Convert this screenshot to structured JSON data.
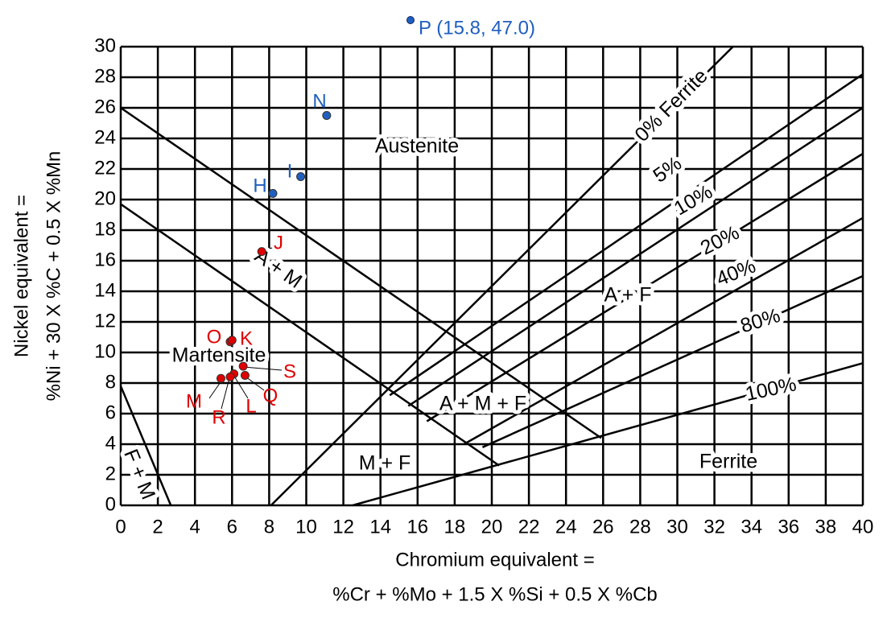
{
  "chart_data": {
    "type": "scatter",
    "xlabel": [
      "Chromium equivalent =",
      "%Cr + %Mo + 1.5 X %Si + 0.5 X %Cb"
    ],
    "ylabel": [
      "Nickel equivalent =",
      "%Ni + 30 X %C + 0.5 X %Mn"
    ],
    "xlim": [
      0,
      40
    ],
    "ylim": [
      0,
      30
    ],
    "xticks": [
      0,
      2,
      4,
      6,
      8,
      10,
      12,
      14,
      16,
      18,
      20,
      22,
      24,
      26,
      28,
      30,
      32,
      34,
      36,
      38,
      40
    ],
    "yticks": [
      0,
      2,
      4,
      6,
      8,
      10,
      12,
      14,
      16,
      18,
      20,
      22,
      24,
      26,
      28,
      30
    ],
    "grid": true,
    "series": [
      {
        "color": "#1f5fbf",
        "labels": [
          "N",
          "I",
          "H"
        ],
        "x": [
          11.1,
          9.7,
          8.2
        ],
        "y": [
          25.5,
          21.5,
          20.4
        ]
      },
      {
        "color": "#e00000",
        "labels": [
          "J",
          "O",
          "K",
          "S",
          "Q",
          "L",
          "R",
          "M"
        ],
        "x": [
          7.6,
          5.9,
          6.0,
          6.6,
          6.7,
          6.1,
          5.9,
          5.4
        ],
        "y": [
          16.6,
          10.7,
          10.8,
          9.1,
          8.5,
          8.6,
          8.4,
          8.3
        ]
      }
    ],
    "boundaries": [
      {
        "x": [
          0,
          25.9
        ],
        "y": [
          26,
          4.4
        ]
      },
      {
        "x": [
          0,
          20.4
        ],
        "y": [
          19.7,
          2.6
        ]
      },
      {
        "x": [
          0,
          2.7
        ],
        "y": [
          7.8,
          0
        ]
      },
      {
        "x": [
          8.1,
          33
        ],
        "y": [
          0,
          30
        ]
      },
      {
        "x": [
          14.5,
          40
        ],
        "y": [
          7.2,
          28.2
        ]
      },
      {
        "x": [
          15.5,
          40
        ],
        "y": [
          6.5,
          26
        ]
      },
      {
        "x": [
          16.5,
          40
        ],
        "y": [
          5.5,
          23
        ]
      },
      {
        "x": [
          18.5,
          40
        ],
        "y": [
          4,
          18.8
        ]
      },
      {
        "x": [
          19.5,
          40
        ],
        "y": [
          3.8,
          15
        ]
      },
      {
        "x": [
          12.5,
          40
        ],
        "y": [
          0,
          9.3
        ]
      }
    ],
    "line_labels": [
      "0% Ferrite",
      "5%",
      "10%",
      "20%",
      "40%",
      "80%",
      "100%"
    ],
    "regions": [
      "Austenite",
      "A + F",
      "A + M + F",
      "M + F",
      "Ferrite",
      "Martensite",
      "A + M",
      "F + M"
    ],
    "annotation": "P (15.8, 47.0)"
  }
}
